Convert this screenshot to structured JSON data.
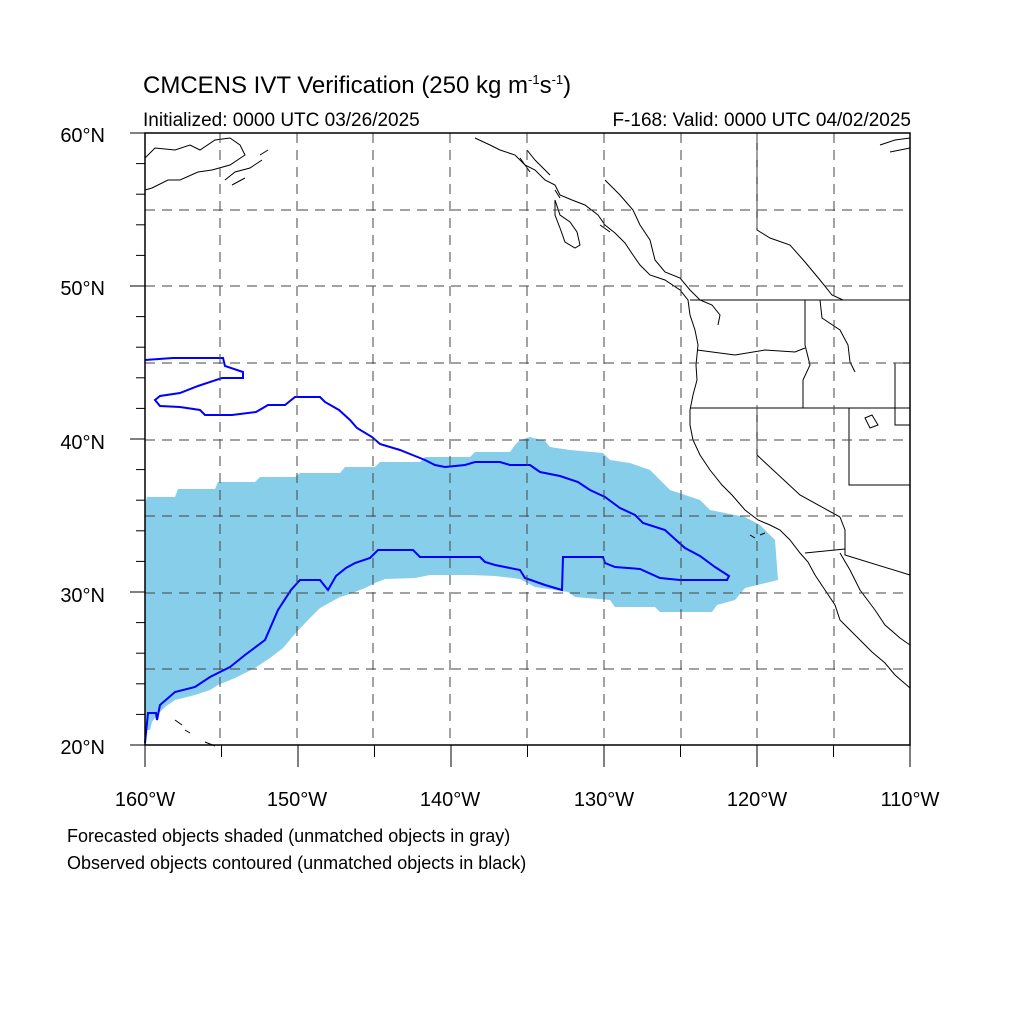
{
  "title": {
    "model": "CMCENS IVT Verification",
    "threshold_prefix": "(250 kg m",
    "exp1": "-1",
    "mid": "s",
    "exp2": "-1",
    "suffix": ")"
  },
  "initialized": "Initialized: 0000 UTC 03/26/2025",
  "valid": "F-168: Valid: 0000 UTC 04/02/2025",
  "lon_ticks": [
    "160°W",
    "150°W",
    "140°W",
    "130°W",
    "120°W",
    "110°W"
  ],
  "lat_ticks": [
    "60°N",
    "50°N",
    "40°N",
    "30°N",
    "20°N"
  ],
  "lon_range": [
    -160,
    -110
  ],
  "lat_range": [
    20,
    60
  ],
  "notes": [
    "Forecasted objects shaded (unmatched objects in gray)",
    "Observed objects contoured (unmatched objects in black)"
  ],
  "colors": {
    "forecast_fill": "#87ceeb",
    "observed_contour": "#0000ff",
    "coastline": "#000000",
    "grid": "#444444"
  }
}
